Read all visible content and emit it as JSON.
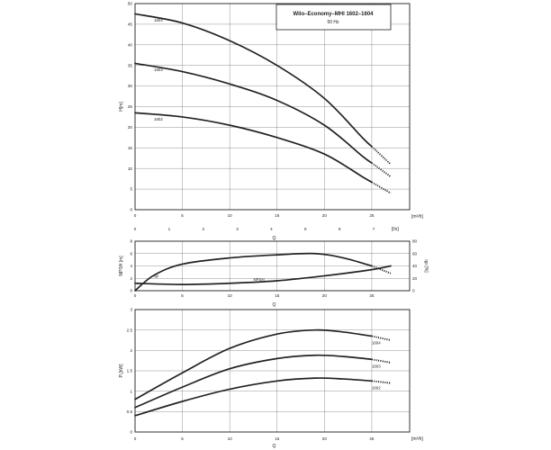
{
  "legend": {
    "title": "Wilo–Economy–MHI 1602–1604",
    "subtitle": "50 Hz"
  },
  "chart_data": [
    {
      "id": "head",
      "type": "line",
      "ylabel": "H[m]",
      "xlabel_bottom": "Q",
      "xunit": "[m³/h]",
      "x2unit": "[l/s]",
      "xlim": [
        0,
        29
      ],
      "ylim": [
        0,
        50
      ],
      "xticks": [
        0,
        5,
        10,
        15,
        20,
        25
      ],
      "yticks": [
        0,
        5,
        10,
        15,
        20,
        25,
        30,
        35,
        40,
        45,
        50
      ],
      "x2ticks": [
        0,
        1,
        2,
        3,
        4,
        5,
        6,
        7
      ],
      "grid": true,
      "series": [
        {
          "name": "1604",
          "x": [
            0,
            5,
            10,
            15,
            20,
            24,
            27
          ],
          "y": [
            47.5,
            45.3,
            41,
            35,
            27,
            17.5,
            11
          ],
          "dashed_from_x": 25
        },
        {
          "name": "1603",
          "x": [
            0,
            5,
            10,
            15,
            20,
            24,
            27
          ],
          "y": [
            35.5,
            33.5,
            30.5,
            26.5,
            20.5,
            13,
            8
          ],
          "dashed_from_x": 25
        },
        {
          "name": "1602",
          "x": [
            0,
            5,
            10,
            15,
            20,
            24,
            27
          ],
          "y": [
            23.5,
            22.5,
            20.5,
            17.5,
            13.5,
            8,
            4
          ],
          "dashed_from_x": 25
        }
      ]
    },
    {
      "id": "npsh-efficiency",
      "type": "line",
      "ylabel_left": "NPSH [m]",
      "ylabel_right": "ηp [%]",
      "xlabel": "Q",
      "xlim": [
        0,
        29
      ],
      "ylim_left": [
        0,
        8
      ],
      "ylim_right": [
        0,
        80
      ],
      "xticks": [
        0,
        5,
        10,
        15,
        20,
        25
      ],
      "yticks_left": [
        0,
        2,
        4,
        6,
        8
      ],
      "yticks_right": [
        0,
        20,
        40,
        60,
        80
      ],
      "grid": true,
      "series": [
        {
          "name": "ηp",
          "axis": "right",
          "x": [
            0,
            2,
            5,
            10,
            15,
            19,
            22,
            25,
            27
          ],
          "y": [
            0,
            25,
            43,
            53,
            58,
            60,
            53,
            40,
            28
          ],
          "dashed_from_x": 25
        },
        {
          "name": "NPSH",
          "axis": "left",
          "x": [
            0,
            5,
            10,
            15,
            20,
            25,
            27
          ],
          "y": [
            1.2,
            1.0,
            1.2,
            1.6,
            2.4,
            3.4,
            4.0
          ]
        }
      ]
    },
    {
      "id": "power",
      "type": "line",
      "ylabel": "P₁[kW]",
      "xlabel": "Q",
      "xunit": "[m³/h]",
      "xlim": [
        0,
        29
      ],
      "ylim": [
        0,
        3
      ],
      "xticks": [
        0,
        5,
        10,
        15,
        20,
        25
      ],
      "yticks": [
        0,
        0.5,
        1,
        1.5,
        2,
        2.5,
        3
      ],
      "grid": true,
      "series": [
        {
          "name": "1604",
          "x": [
            0,
            5,
            10,
            15,
            19,
            22,
            25,
            27
          ],
          "y": [
            0.8,
            1.45,
            2.05,
            2.4,
            2.5,
            2.45,
            2.35,
            2.25
          ],
          "dashed_from_x": 25
        },
        {
          "name": "1603",
          "x": [
            0,
            5,
            10,
            15,
            19,
            22,
            25,
            27
          ],
          "y": [
            0.6,
            1.1,
            1.55,
            1.8,
            1.88,
            1.85,
            1.78,
            1.7
          ],
          "dashed_from_x": 25
        },
        {
          "name": "1602",
          "x": [
            0,
            5,
            10,
            15,
            19,
            22,
            25,
            27
          ],
          "y": [
            0.4,
            0.75,
            1.05,
            1.25,
            1.32,
            1.3,
            1.25,
            1.2
          ],
          "dashed_from_x": 25
        }
      ]
    }
  ]
}
